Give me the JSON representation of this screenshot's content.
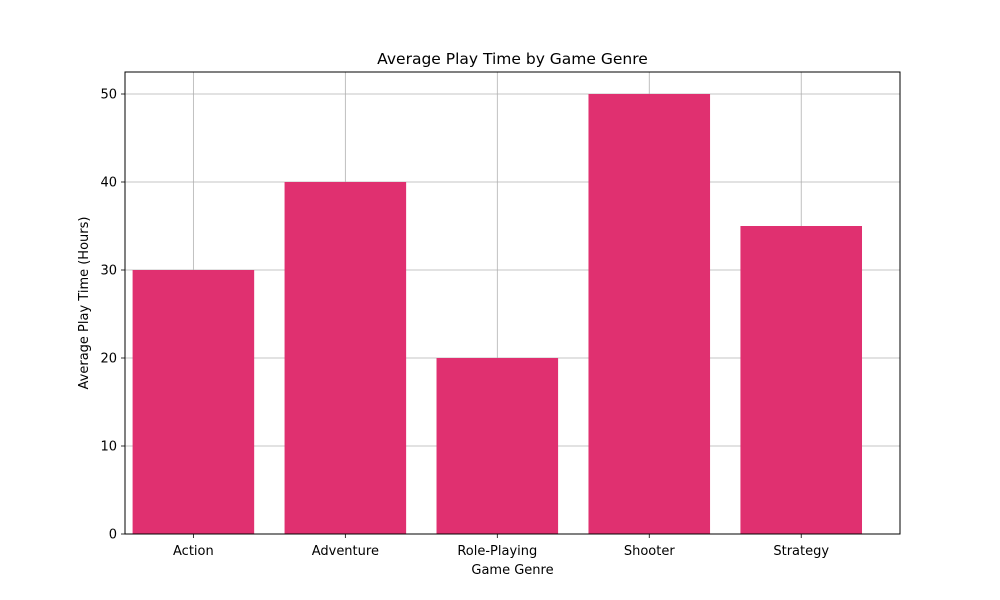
{
  "chart_data": {
    "type": "bar",
    "title": "Average Play Time by Game Genre",
    "xlabel": "Game Genre",
    "ylabel": "Average Play Time (Hours)",
    "categories": [
      "Action",
      "Adventure",
      "Role-Playing",
      "Shooter",
      "Strategy"
    ],
    "values": [
      30,
      40,
      20,
      50,
      35
    ],
    "ylim": [
      0,
      52.5
    ],
    "yticks": [
      0,
      10,
      20,
      30,
      40,
      50
    ],
    "grid": true,
    "bar_color": "#e03070"
  }
}
